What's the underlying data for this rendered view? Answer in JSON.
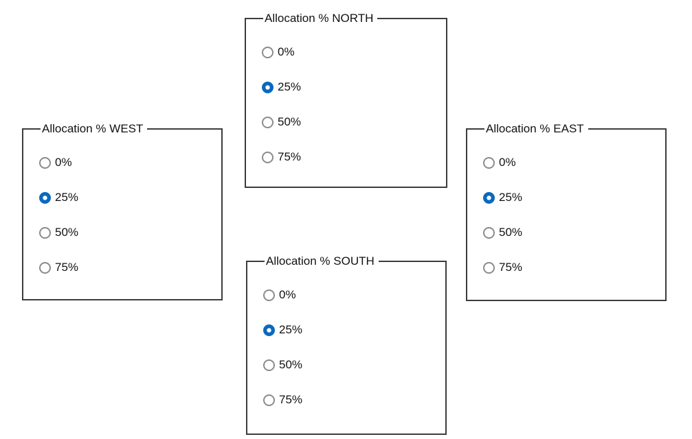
{
  "colors": {
    "background": "#ffffff",
    "box_border": "#3c3c3c",
    "text": "#111111",
    "radio_unchecked_border": "#8b8b8b",
    "radio_checked_blue": "#0b69be"
  },
  "groups": [
    {
      "id": "west",
      "title": "Allocation % WEST",
      "selected_value": "25%",
      "options": [
        {
          "label": "0%"
        },
        {
          "label": "25%",
          "checked": "checked"
        },
        {
          "label": "50%"
        },
        {
          "label": "75%"
        }
      ]
    },
    {
      "id": "north",
      "title": "Allocation % NORTH",
      "selected_value": "25%",
      "options": [
        {
          "label": "0%"
        },
        {
          "label": "25%",
          "checked": "checked"
        },
        {
          "label": "50%"
        },
        {
          "label": "75%"
        }
      ]
    },
    {
      "id": "east",
      "title": "Allocation % EAST",
      "selected_value": "25%",
      "options": [
        {
          "label": "0%"
        },
        {
          "label": "25%",
          "checked": "checked"
        },
        {
          "label": "50%"
        },
        {
          "label": "75%"
        }
      ]
    },
    {
      "id": "south",
      "title": "Allocation % SOUTH",
      "selected_value": "25%",
      "options": [
        {
          "label": "0%"
        },
        {
          "label": "25%",
          "checked": "checked"
        },
        {
          "label": "50%"
        },
        {
          "label": "75%"
        }
      ]
    }
  ]
}
